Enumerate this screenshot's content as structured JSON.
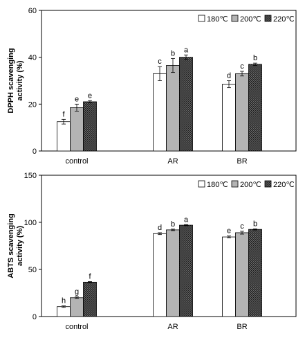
{
  "chart_data": [
    {
      "type": "bar",
      "title": "",
      "xlabel": "",
      "ylabel": "DPPH scavenging activity (%)",
      "ylabel_lines": [
        "DPPH scavenging",
        "activity (%)"
      ],
      "ylim": [
        0,
        60
      ],
      "yticks": [
        0,
        20,
        40,
        60
      ],
      "grid": false,
      "legend_position": "top-right",
      "categories": [
        "control",
        "AR",
        "BR"
      ],
      "series": [
        {
          "name": "180℃",
          "pattern": "white",
          "values": [
            12.5,
            33,
            28.5
          ],
          "errors": [
            1.0,
            3.0,
            1.5
          ],
          "labels": [
            "f",
            "c",
            "d"
          ]
        },
        {
          "name": "200℃",
          "pattern": "gray",
          "values": [
            18.5,
            36.5,
            33
          ],
          "errors": [
            1.5,
            3.0,
            1.0
          ],
          "labels": [
            "e",
            "b",
            "c"
          ]
        },
        {
          "name": "220℃",
          "pattern": "checker",
          "values": [
            21,
            40,
            37
          ],
          "errors": [
            0.5,
            1.0,
            0.5
          ],
          "labels": [
            "e",
            "a",
            "b"
          ]
        }
      ]
    },
    {
      "type": "bar",
      "title": "",
      "xlabel": "",
      "ylabel": "ABTS scavenging activity (%)",
      "ylabel_lines": [
        "ABTS scavenging",
        "activity (%)"
      ],
      "ylim": [
        0,
        150
      ],
      "yticks": [
        0,
        50,
        100,
        150
      ],
      "grid": false,
      "legend_position": "top-right",
      "categories": [
        "control",
        "AR",
        "BR"
      ],
      "series": [
        {
          "name": "180℃",
          "pattern": "white",
          "values": [
            10.5,
            88,
            84.5
          ],
          "errors": [
            0.8,
            1.0,
            1.0
          ],
          "labels": [
            "h",
            "d",
            "e"
          ]
        },
        {
          "name": "200℃",
          "pattern": "gray",
          "values": [
            20,
            92,
            89
          ],
          "errors": [
            0.8,
            0.8,
            1.5
          ],
          "labels": [
            "g",
            "b",
            "c"
          ]
        },
        {
          "name": "220℃",
          "pattern": "checker",
          "values": [
            36.5,
            97,
            92.5
          ],
          "errors": [
            0.6,
            0.6,
            0.6
          ],
          "labels": [
            "f",
            "a",
            "b"
          ]
        }
      ]
    }
  ]
}
